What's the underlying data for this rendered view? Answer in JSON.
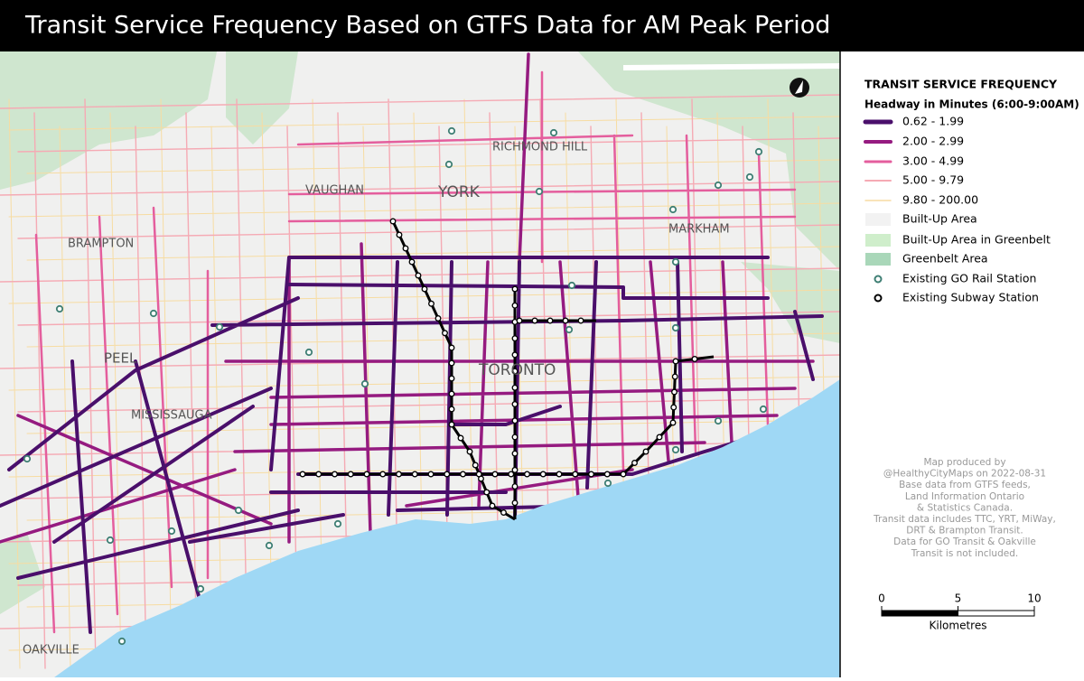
{
  "header": {
    "title": "Transit Service Frequency Based on GTFS Data for AM Peak Period"
  },
  "map": {
    "places": [
      "BRAMPTON",
      "PEEL",
      "MISSISSAUGA",
      "VAUGHAN",
      "YORK",
      "RICHMOND HILL",
      "MARKHAM",
      "TORONTO",
      "OAKVILLE"
    ]
  },
  "legend": {
    "title": "TRANSIT SERVICE FREQUENCY",
    "subtitle": "Headway in Minutes (6:00-9:00AM)",
    "items": [
      {
        "label": "0.62 - 1.99",
        "color": "#4a0f6b"
      },
      {
        "label": "2.00 - 2.99",
        "color": "#951b80"
      },
      {
        "label": "3.00 - 4.99",
        "color": "#e45e9d"
      },
      {
        "label": "5.00 - 9.79",
        "color": "#f5aab4"
      },
      {
        "label": "9.80 - 200.00",
        "color": "#f7dca2"
      },
      {
        "label": "Built-Up Area",
        "color": "#f2f2f2"
      },
      {
        "label": "Built-Up Area in Greenbelt",
        "color": "#cfeecb"
      },
      {
        "label": "Greenbelt Area",
        "color": "#a9d7b9"
      },
      {
        "label": "Existing GO Rail Station",
        "color": "#3f7f74"
      },
      {
        "label": "Existing Subway Station",
        "color": "#000000"
      }
    ]
  },
  "credits": [
    "Map produced by",
    "@HealthyCityMaps on 2022-08-31",
    "Base data from GTFS feeds,",
    "Land Information Ontario",
    "& Statistics Canada.",
    "Transit data includes TTC, YRT, MiWay,",
    "DRT & Brampton Transit.",
    "Data for GO Transit & Oakville",
    "Transit is not included."
  ],
  "scale_bar": {
    "ticks": [
      0,
      5,
      10
    ],
    "unit": "Kilometres"
  }
}
